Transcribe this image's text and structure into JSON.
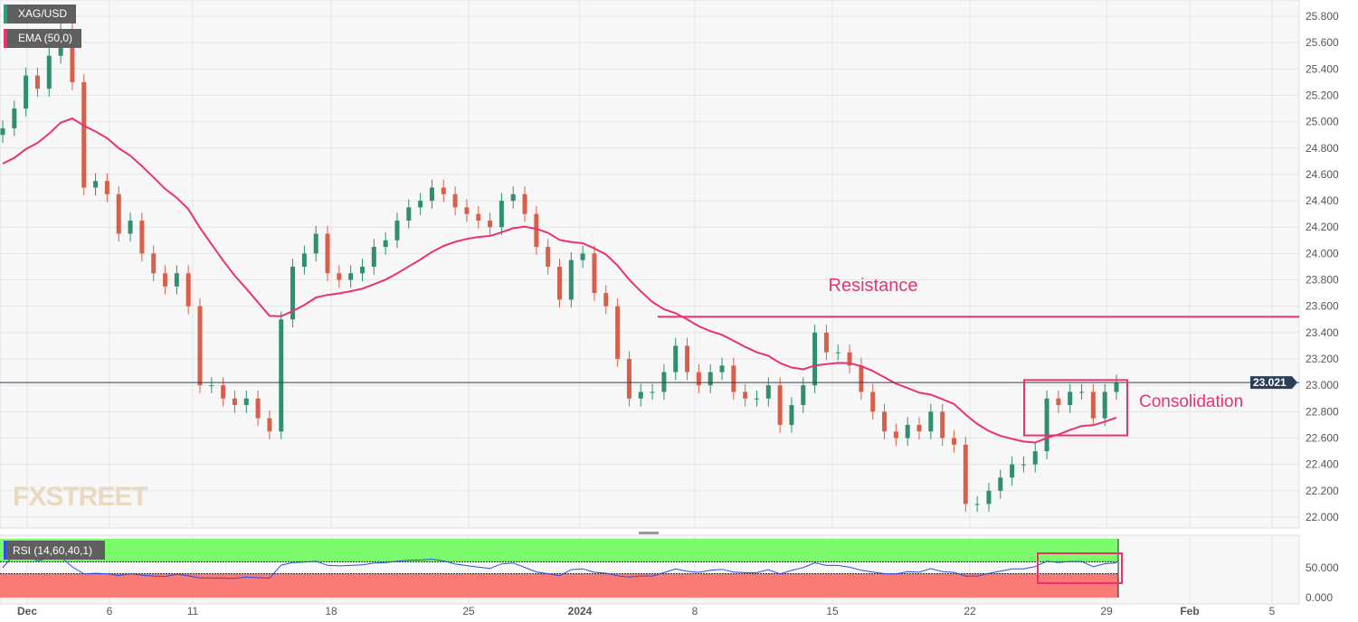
{
  "chart_data": {
    "type": "candlestick",
    "symbol": "XAG/USD",
    "indicator_ema": "EMA (50,0)",
    "indicator_rsi": "RSI (14,60,40,1)",
    "last_price": "23.021",
    "y_ticks": [
      "22.000",
      "22.200",
      "22.400",
      "22.600",
      "22.800",
      "23.000",
      "23.200",
      "23.400",
      "23.600",
      "23.800",
      "24.000",
      "24.200",
      "24.400",
      "24.600",
      "24.800",
      "25.000",
      "25.200",
      "25.400",
      "25.600",
      "25.800"
    ],
    "ylim": [
      21.92,
      25.95
    ],
    "rsi_ticks": [
      "0.000",
      "50.000"
    ],
    "rsi_levels": [
      40,
      60
    ],
    "x_ticks": [
      "Dec",
      "6",
      "11",
      "18",
      "25",
      "2024",
      "8",
      "15",
      "22",
      "29",
      "Feb",
      "5"
    ],
    "closes": [
      24.95,
      25.1,
      25.35,
      25.25,
      25.5,
      25.7,
      25.3,
      24.5,
      24.55,
      24.45,
      24.15,
      24.25,
      24.0,
      23.85,
      23.75,
      23.85,
      23.6,
      23.0,
      23.0,
      22.9,
      22.85,
      22.9,
      22.75,
      22.65,
      23.5,
      23.9,
      24.0,
      24.15,
      23.85,
      23.8,
      23.85,
      23.9,
      24.05,
      24.1,
      24.25,
      24.35,
      24.4,
      24.5,
      24.45,
      24.35,
      24.3,
      24.25,
      24.2,
      24.4,
      24.45,
      24.3,
      24.05,
      23.9,
      23.65,
      23.95,
      24.0,
      23.7,
      23.6,
      23.2,
      22.9,
      22.95,
      22.95,
      23.1,
      23.3,
      23.1,
      23.0,
      23.1,
      23.15,
      22.95,
      22.9,
      22.9,
      23.0,
      22.7,
      22.85,
      23.0,
      23.4,
      23.25,
      23.25,
      23.15,
      22.95,
      22.8,
      22.65,
      22.6,
      22.7,
      22.65,
      22.8,
      22.6,
      22.55,
      22.1,
      22.1,
      22.2,
      22.3,
      22.4,
      22.4,
      22.5,
      22.9,
      22.85,
      22.95,
      22.95,
      22.75,
      22.95,
      23.02
    ],
    "resistance_level": 23.52,
    "consolidation_range": [
      22.62,
      23.04
    ],
    "annotations": {
      "resistance": "Resistance",
      "consolidation": "Consolidation"
    },
    "colors": {
      "up": "#2f8f6f",
      "down": "#d8604a",
      "ema": "#e8336d",
      "rsi": "#2b4fe0",
      "rsi_high": "#7cfc6c",
      "rsi_low": "#fa7b76",
      "annotation": "#e8336d",
      "last_price_bg": "#2c3e5c"
    }
  },
  "watermark": "FXSTREET"
}
